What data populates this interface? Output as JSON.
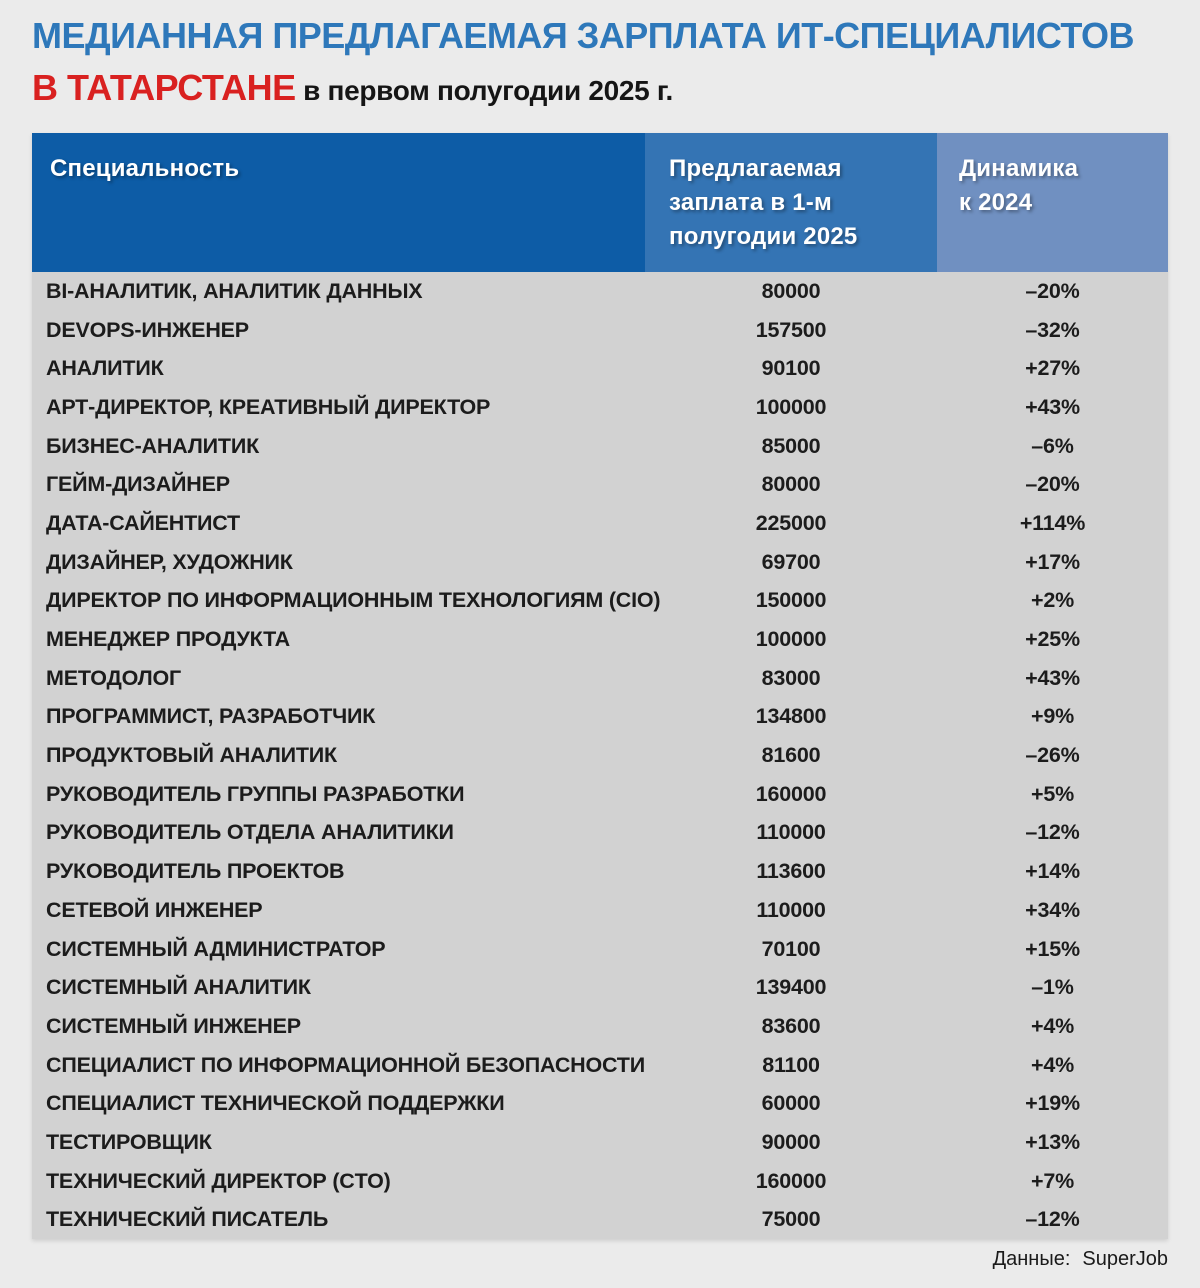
{
  "title": {
    "line1": "МЕДИАННАЯ ПРЕДЛАГАЕМАЯ ЗАРПЛАТА ИТ-СПЕЦИАЛИСТОВ",
    "line2_highlight": "В ТАТАРСТАНЕ",
    "line2_rest": " в первом полугодии 2025 г."
  },
  "table": {
    "headers": {
      "specialty": "Специальность",
      "salary": "Предлагаемая\nзаплата в 1-м\nполугодии 2025",
      "dynamics": "Динамика\nк 2024"
    }
  },
  "footer": {
    "label": "Данные:",
    "value": "SuperJob"
  },
  "colors": {
    "page_bg": "#ebebeb",
    "body_bg": "#d2d2d2",
    "header_col1_bg": "#0d5ca6",
    "header_col2_bg": "#3474b4",
    "header_col3_bg": "#7090c1",
    "title_blue": "#2e78ba",
    "title_red": "#d92120",
    "text_dark": "#1c1c1c"
  },
  "chart_data": {
    "type": "table",
    "title": "МЕДИАННАЯ ПРЕДЛАГАЕМАЯ ЗАРПЛАТА ИТ-СПЕЦИАЛИСТОВ В ТАТАРСТАНЕ в первом полугодии 2025 г.",
    "columns": [
      "Специальность",
      "Предлагаемая заплата в 1-м полугодии 2025",
      "Динамика к 2024"
    ],
    "rows": [
      [
        "BI-АНАЛИТИК, АНАЛИТИК ДАННЫХ",
        80000,
        "–20%"
      ],
      [
        "DEVOPS-ИНЖЕНЕР",
        157500,
        "–32%"
      ],
      [
        "АНАЛИТИК",
        90100,
        "+27%"
      ],
      [
        "АРТ-ДИРЕКТОР, КРЕАТИВНЫЙ ДИРЕКТОР",
        100000,
        "+43%"
      ],
      [
        "БИЗНЕС-АНАЛИТИК",
        85000,
        "–6%"
      ],
      [
        "ГЕЙМ-ДИЗАЙНЕР",
        80000,
        "–20%"
      ],
      [
        "ДАТА-САЙЕНТИСТ",
        225000,
        "+114%"
      ],
      [
        "ДИЗАЙНЕР, ХУДОЖНИК",
        69700,
        "+17%"
      ],
      [
        "ДИРЕКТОР ПО ИНФОРМАЦИОННЫМ ТЕХНОЛОГИЯМ (CIO)",
        150000,
        "+2%"
      ],
      [
        "МЕНЕДЖЕР ПРОДУКТА",
        100000,
        "+25%"
      ],
      [
        "МЕТОДОЛОГ",
        83000,
        "+43%"
      ],
      [
        "ПРОГРАММИСТ, РАЗРАБОТЧИК",
        134800,
        "+9%"
      ],
      [
        "ПРОДУКТОВЫЙ АНАЛИТИК",
        81600,
        "–26%"
      ],
      [
        "РУКОВОДИТЕЛЬ ГРУППЫ РАЗРАБОТКИ",
        160000,
        "+5%"
      ],
      [
        "РУКОВОДИТЕЛЬ ОТДЕЛА АНАЛИТИКИ",
        110000,
        "–12%"
      ],
      [
        "РУКОВОДИТЕЛЬ ПРОЕКТОВ",
        113600,
        "+14%"
      ],
      [
        "СЕТЕВОЙ ИНЖЕНЕР",
        110000,
        "+34%"
      ],
      [
        "СИСТЕМНЫЙ АДМИНИСТРАТОР",
        70100,
        "+15%"
      ],
      [
        "СИСТЕМНЫЙ АНАЛИТИК",
        139400,
        "–1%"
      ],
      [
        "СИСТЕМНЫЙ ИНЖЕНЕР",
        83600,
        "+4%"
      ],
      [
        "СПЕЦИАЛИСТ ПО ИНФОРМАЦИОННОЙ БЕЗОПАСНОСТИ",
        81100,
        "+4%"
      ],
      [
        "СПЕЦИАЛИСТ ТЕХНИЧЕСКОЙ ПОДДЕРЖКИ",
        60000,
        "+19%"
      ],
      [
        "ТЕСТИРОВЩИК",
        90000,
        "+13%"
      ],
      [
        "ТЕХНИЧЕСКИЙ ДИРЕКТОР (CTO)",
        160000,
        "+7%"
      ],
      [
        "ТЕХНИЧЕСКИЙ ПИСАТЕЛЬ",
        75000,
        "–12%"
      ]
    ],
    "source": "SuperJob",
    "layout": {
      "salary_align": "center",
      "dynamics_align": "center",
      "grid": false
    }
  }
}
